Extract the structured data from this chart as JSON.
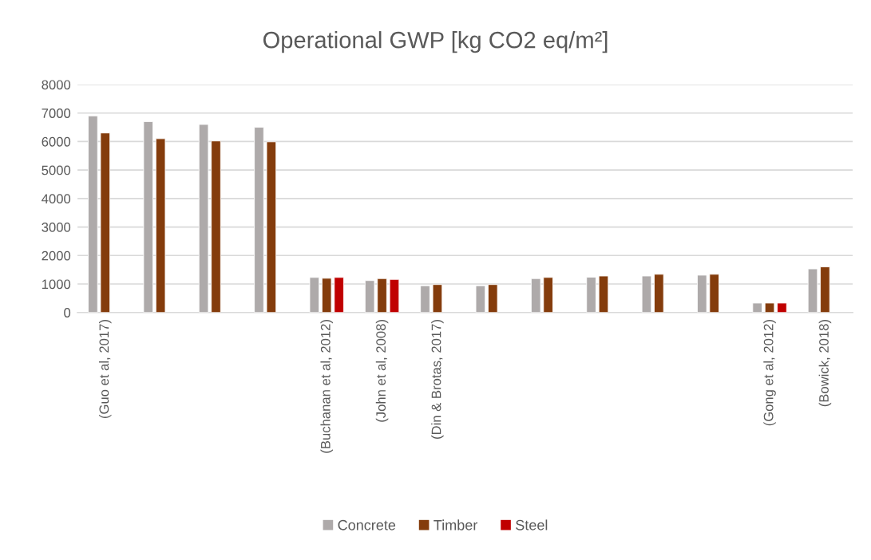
{
  "chart_data": {
    "type": "bar",
    "title": "Operational GWP [kg CO2 eq/m²]",
    "categories": [
      "(Guo et al, 2017)",
      null,
      null,
      null,
      "(Buchanan et al, 2012)",
      "(John et al, 2008)",
      "(Din & Brotas, 2017)",
      null,
      null,
      null,
      null,
      null,
      "(Gong et al, 2012)",
      "(Bowick, 2018)"
    ],
    "series": [
      {
        "name": "Concrete",
        "color": "#aeaaaa",
        "values": [
          6900,
          6700,
          6600,
          6500,
          1230,
          1120,
          940,
          940,
          1190,
          1240,
          1280,
          1310,
          330,
          1530
        ]
      },
      {
        "name": "Timber",
        "color": "#843c0c",
        "values": [
          6300,
          6100,
          6020,
          5990,
          1200,
          1190,
          980,
          980,
          1230,
          1280,
          1340,
          1340,
          330,
          1600
        ]
      },
      {
        "name": "Steel",
        "color": "#c00000",
        "values": [
          null,
          null,
          null,
          null,
          1230,
          1160,
          null,
          null,
          null,
          null,
          null,
          null,
          330,
          null
        ]
      }
    ],
    "ylim": [
      0,
      8000
    ],
    "yticks": [
      0,
      1000,
      2000,
      3000,
      4000,
      5000,
      6000,
      7000,
      8000
    ],
    "grid": "y",
    "legend": "bottom"
  }
}
